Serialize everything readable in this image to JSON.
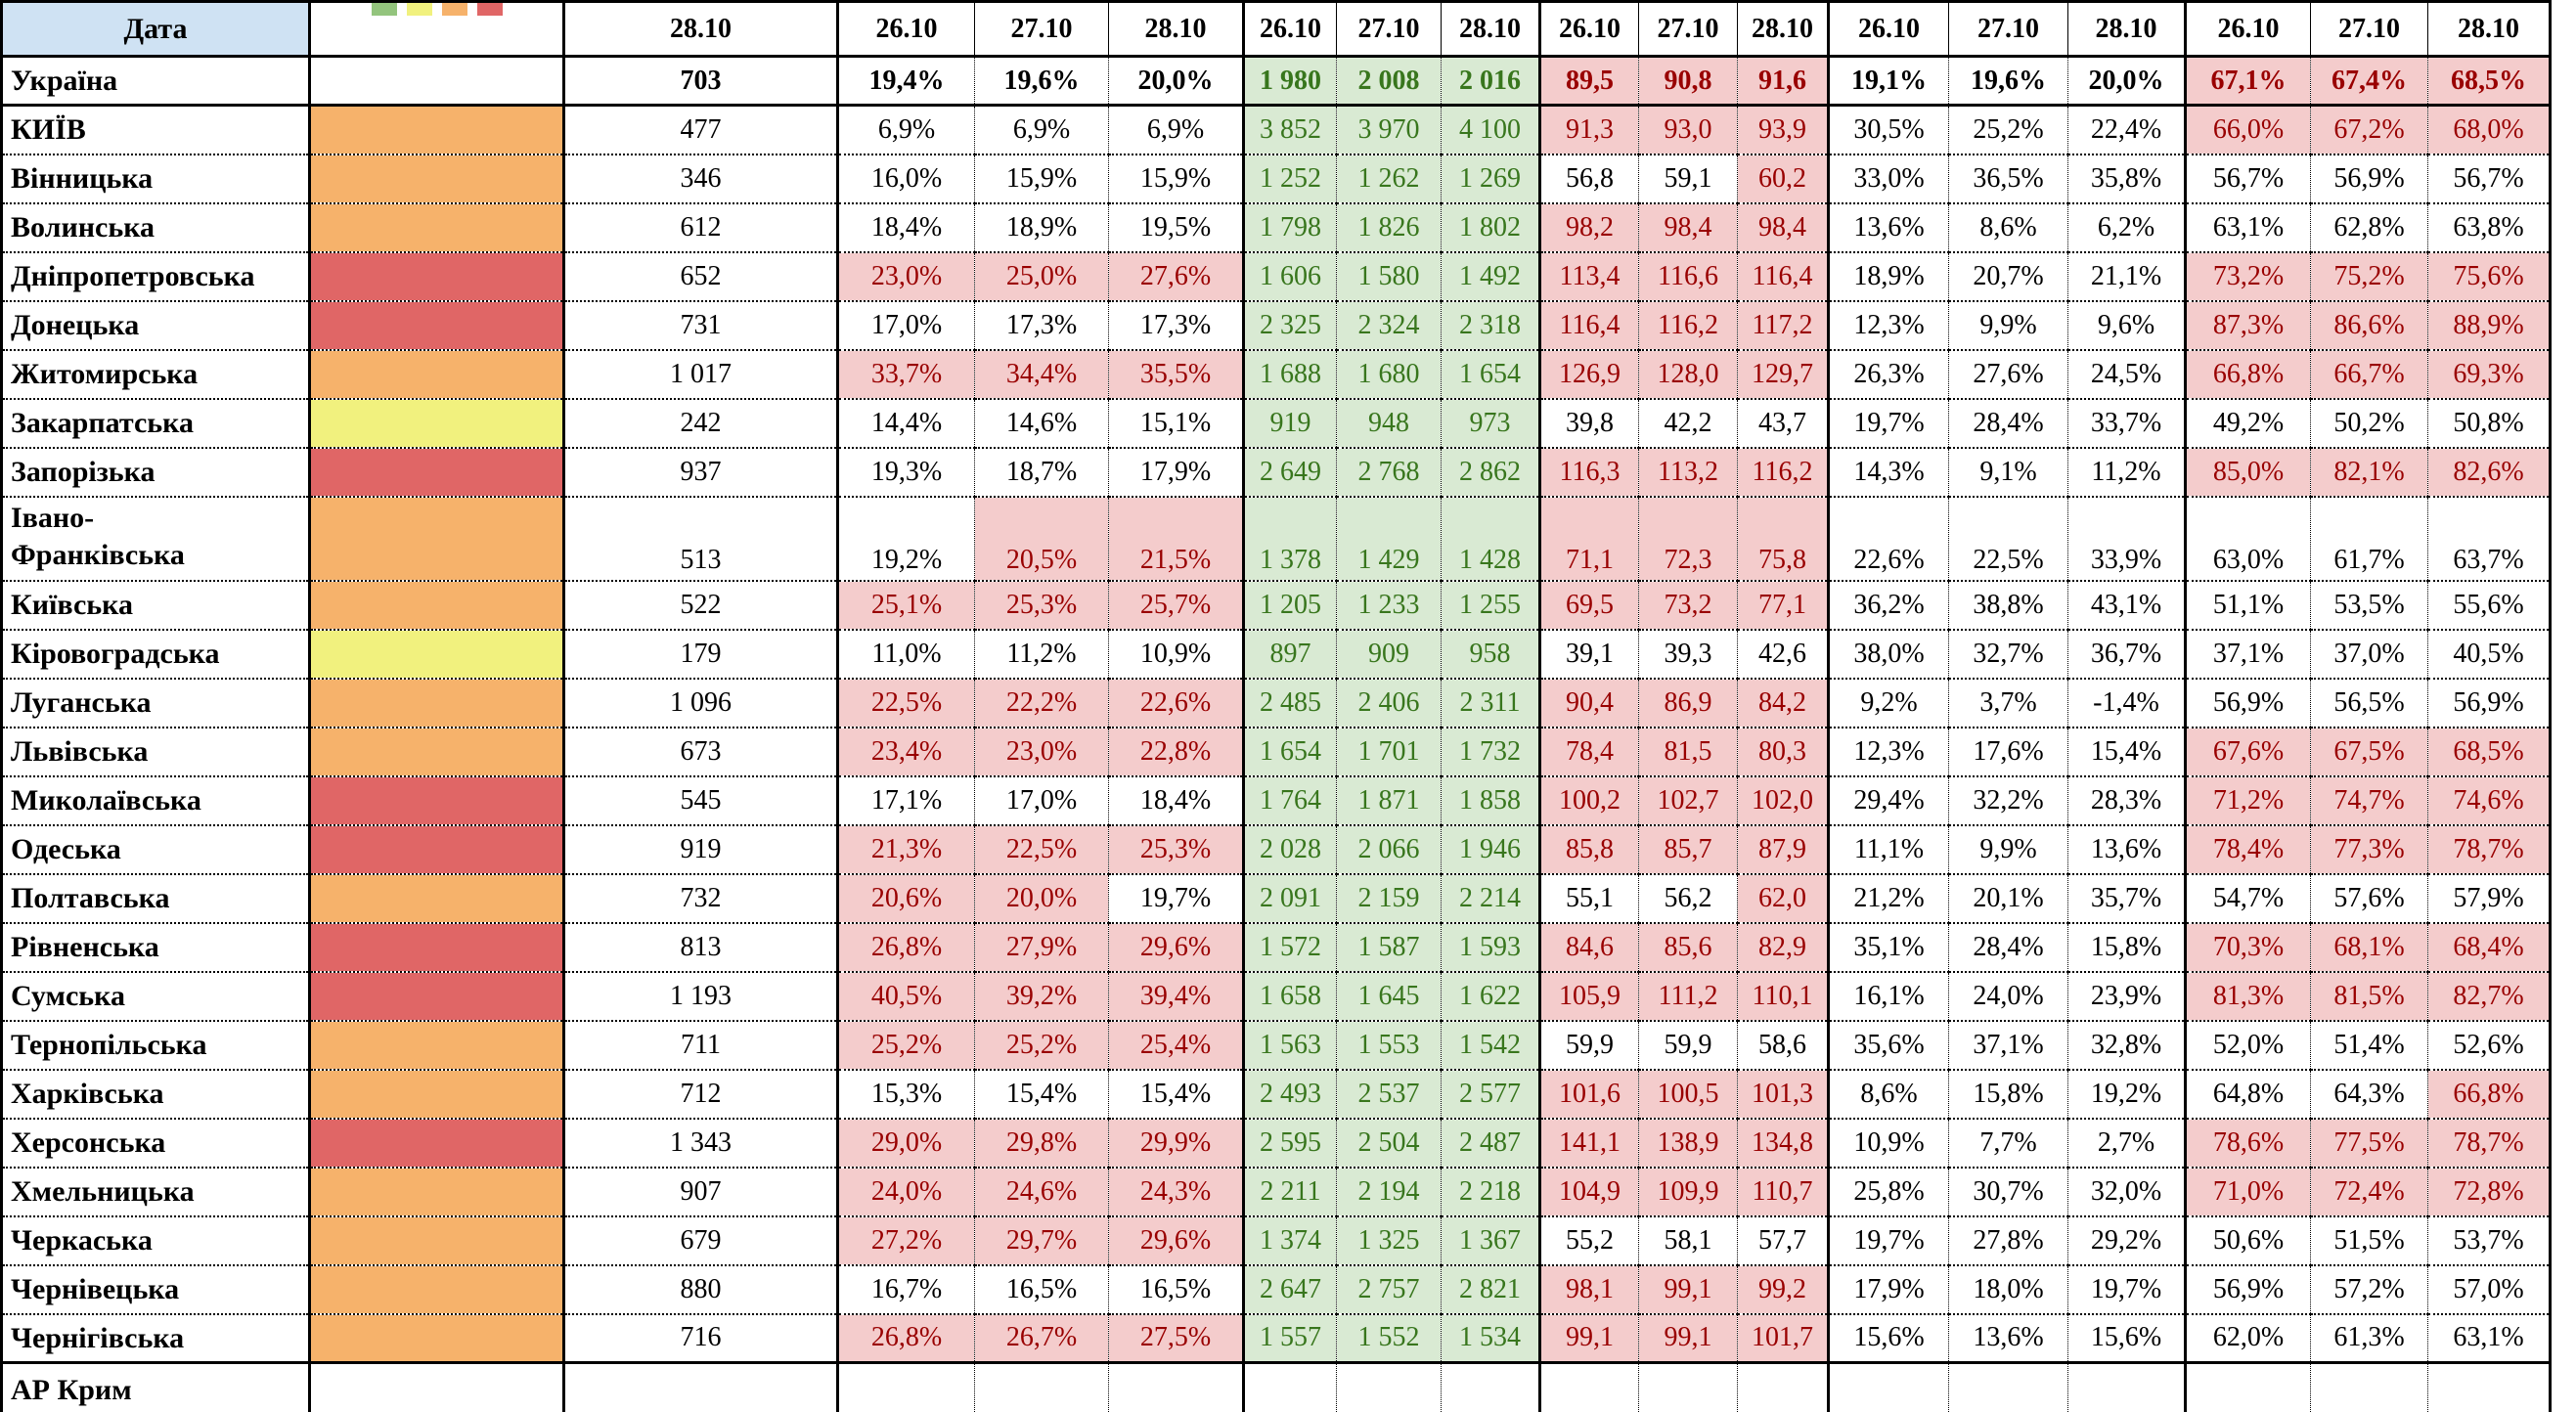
{
  "header": {
    "date_label": "Дата",
    "col1_date": "28.10",
    "group_dates": [
      "26.10",
      "27.10",
      "28.10"
    ],
    "num_groups": 5,
    "legend": [
      {
        "name": "green",
        "hex": "#93c47d"
      },
      {
        "name": "yellow",
        "hex": "#f1f17e"
      },
      {
        "name": "orange",
        "hex": "#f6b26b"
      },
      {
        "name": "red",
        "hex": "#e06666"
      }
    ]
  },
  "colors": {
    "header_blue": "#cfe2f3",
    "heat_orange": "#f6b26b",
    "heat_red": "#e06666",
    "heat_yellow": "#f1f17e",
    "green_bg": "#d9ead3",
    "green_text": "#38761d",
    "pink_bg": "#f4cccc",
    "red_text": "#990000"
  },
  "thresholds": {
    "g1_red_pct": 20,
    "g3_red_num": 60,
    "g5_red_pct": 65
  },
  "rows": [
    {
      "name": "Україна",
      "bold": true,
      "heat": null,
      "total": "703",
      "g1": [
        "19,4%",
        "19,6%",
        "20,0%"
      ],
      "g2": [
        "1 980",
        "2 008",
        "2 016"
      ],
      "g3": [
        "89,5",
        "90,8",
        "91,6"
      ],
      "g4": [
        "19,1%",
        "19,6%",
        "20,0%"
      ],
      "g5": [
        "67,1%",
        "67,4%",
        "68,5%"
      ]
    },
    {
      "name": "КИЇВ",
      "heat": "orange",
      "total": "477",
      "g1": [
        "6,9%",
        "6,9%",
        "6,9%"
      ],
      "g2": [
        "3 852",
        "3 970",
        "4 100"
      ],
      "g3": [
        "91,3",
        "93,0",
        "93,9"
      ],
      "g4": [
        "30,5%",
        "25,2%",
        "22,4%"
      ],
      "g5": [
        "66,0%",
        "67,2%",
        "68,0%"
      ]
    },
    {
      "name": "Вінницька",
      "heat": "orange",
      "total": "346",
      "g1": [
        "16,0%",
        "15,9%",
        "15,9%"
      ],
      "g2": [
        "1 252",
        "1 262",
        "1 269"
      ],
      "g3": [
        "56,8",
        "59,1",
        "60,2"
      ],
      "g4": [
        "33,0%",
        "36,5%",
        "35,8%"
      ],
      "g5": [
        "56,7%",
        "56,9%",
        "56,7%"
      ]
    },
    {
      "name": "Волинська",
      "heat": "orange",
      "total": "612",
      "g1": [
        "18,4%",
        "18,9%",
        "19,5%"
      ],
      "g2": [
        "1 798",
        "1 826",
        "1 802"
      ],
      "g3": [
        "98,2",
        "98,4",
        "98,4"
      ],
      "g4": [
        "13,6%",
        "8,6%",
        "6,2%"
      ],
      "g5": [
        "63,1%",
        "62,8%",
        "63,8%"
      ]
    },
    {
      "name": "Дніпропетровська",
      "heat": "red",
      "total": "652",
      "g1": [
        "23,0%",
        "25,0%",
        "27,6%"
      ],
      "g2": [
        "1 606",
        "1 580",
        "1 492"
      ],
      "g3": [
        "113,4",
        "116,6",
        "116,4"
      ],
      "g4": [
        "18,9%",
        "20,7%",
        "21,1%"
      ],
      "g5": [
        "73,2%",
        "75,2%",
        "75,6%"
      ]
    },
    {
      "name": "Донецька",
      "heat": "red",
      "total": "731",
      "g1": [
        "17,0%",
        "17,3%",
        "17,3%"
      ],
      "g2": [
        "2 325",
        "2 324",
        "2 318"
      ],
      "g3": [
        "116,4",
        "116,2",
        "117,2"
      ],
      "g4": [
        "12,3%",
        "9,9%",
        "9,6%"
      ],
      "g5": [
        "87,3%",
        "86,6%",
        "88,9%"
      ]
    },
    {
      "name": "Житомирська",
      "heat": "orange",
      "total": "1 017",
      "g1": [
        "33,7%",
        "34,4%",
        "35,5%"
      ],
      "g2": [
        "1 688",
        "1 680",
        "1 654"
      ],
      "g3": [
        "126,9",
        "128,0",
        "129,7"
      ],
      "g4": [
        "26,3%",
        "27,6%",
        "24,5%"
      ],
      "g5": [
        "66,8%",
        "66,7%",
        "69,3%"
      ]
    },
    {
      "name": "Закарпатська",
      "heat": "yellow",
      "total": "242",
      "g1": [
        "14,4%",
        "14,6%",
        "15,1%"
      ],
      "g2": [
        "919",
        "948",
        "973"
      ],
      "g3": [
        "39,8",
        "42,2",
        "43,7"
      ],
      "g4": [
        "19,7%",
        "28,4%",
        "33,7%"
      ],
      "g5": [
        "49,2%",
        "50,2%",
        "50,8%"
      ]
    },
    {
      "name": "Запорізька",
      "heat": "red",
      "total": "937",
      "g1": [
        "19,3%",
        "18,7%",
        "17,9%"
      ],
      "g2": [
        "2 649",
        "2 768",
        "2 862"
      ],
      "g3": [
        "116,3",
        "113,2",
        "116,2"
      ],
      "g4": [
        "14,3%",
        "9,1%",
        "11,2%"
      ],
      "g5": [
        "85,0%",
        "82,1%",
        "82,6%"
      ]
    },
    {
      "name": "Івано-\nФранківська",
      "heat": "orange",
      "total": "513",
      "tall": true,
      "g1": [
        "19,2%",
        "20,5%",
        "21,5%"
      ],
      "g2": [
        "1 378",
        "1 429",
        "1 428"
      ],
      "g3": [
        "71,1",
        "72,3",
        "75,8"
      ],
      "g4": [
        "22,6%",
        "22,5%",
        "33,9%"
      ],
      "g5": [
        "63,0%",
        "61,7%",
        "63,7%"
      ]
    },
    {
      "name": "Київська",
      "heat": "orange",
      "total": "522",
      "g1": [
        "25,1%",
        "25,3%",
        "25,7%"
      ],
      "g2": [
        "1 205",
        "1 233",
        "1 255"
      ],
      "g3": [
        "69,5",
        "73,2",
        "77,1"
      ],
      "g4": [
        "36,2%",
        "38,8%",
        "43,1%"
      ],
      "g5": [
        "51,1%",
        "53,5%",
        "55,6%"
      ]
    },
    {
      "name": "Кіровоградська",
      "heat": "yellow",
      "total": "179",
      "g1": [
        "11,0%",
        "11,2%",
        "10,9%"
      ],
      "g2": [
        "897",
        "909",
        "958"
      ],
      "g3": [
        "39,1",
        "39,3",
        "42,6"
      ],
      "g4": [
        "38,0%",
        "32,7%",
        "36,7%"
      ],
      "g5": [
        "37,1%",
        "37,0%",
        "40,5%"
      ]
    },
    {
      "name": "Луганська",
      "heat": "orange",
      "total": "1 096",
      "g1": [
        "22,5%",
        "22,2%",
        "22,6%"
      ],
      "g2": [
        "2 485",
        "2 406",
        "2 311"
      ],
      "g3": [
        "90,4",
        "86,9",
        "84,2"
      ],
      "g4": [
        "9,2%",
        "3,7%",
        "-1,4%"
      ],
      "g5": [
        "56,9%",
        "56,5%",
        "56,9%"
      ]
    },
    {
      "name": "Львівська",
      "heat": "orange",
      "total": "673",
      "g1": [
        "23,4%",
        "23,0%",
        "22,8%"
      ],
      "g2": [
        "1 654",
        "1 701",
        "1 732"
      ],
      "g3": [
        "78,4",
        "81,5",
        "80,3"
      ],
      "g4": [
        "12,3%",
        "17,6%",
        "15,4%"
      ],
      "g5": [
        "67,6%",
        "67,5%",
        "68,5%"
      ]
    },
    {
      "name": "Миколаївська",
      "heat": "red",
      "total": "545",
      "g1": [
        "17,1%",
        "17,0%",
        "18,4%"
      ],
      "g2": [
        "1 764",
        "1 871",
        "1 858"
      ],
      "g3": [
        "100,2",
        "102,7",
        "102,0"
      ],
      "g4": [
        "29,4%",
        "32,2%",
        "28,3%"
      ],
      "g5": [
        "71,2%",
        "74,7%",
        "74,6%"
      ]
    },
    {
      "name": "Одеська",
      "heat": "red",
      "total": "919",
      "g1": [
        "21,3%",
        "22,5%",
        "25,3%"
      ],
      "g2": [
        "2 028",
        "2 066",
        "1 946"
      ],
      "g3": [
        "85,8",
        "85,7",
        "87,9"
      ],
      "g4": [
        "11,1%",
        "9,9%",
        "13,6%"
      ],
      "g5": [
        "78,4%",
        "77,3%",
        "78,7%"
      ]
    },
    {
      "name": "Полтавська",
      "heat": "orange",
      "total": "732",
      "g1": [
        "20,6%",
        "20,0%",
        "19,7%"
      ],
      "g2": [
        "2 091",
        "2 159",
        "2 214"
      ],
      "g3": [
        "55,1",
        "56,2",
        "62,0"
      ],
      "g4": [
        "21,2%",
        "20,1%",
        "35,7%"
      ],
      "g5": [
        "54,7%",
        "57,6%",
        "57,9%"
      ]
    },
    {
      "name": "Рівненська",
      "heat": "red",
      "total": "813",
      "g1": [
        "26,8%",
        "27,9%",
        "29,6%"
      ],
      "g2": [
        "1 572",
        "1 587",
        "1 593"
      ],
      "g3": [
        "84,6",
        "85,6",
        "82,9"
      ],
      "g4": [
        "35,1%",
        "28,4%",
        "15,8%"
      ],
      "g5": [
        "70,3%",
        "68,1%",
        "68,4%"
      ]
    },
    {
      "name": "Сумська",
      "heat": "red",
      "total": "1 193",
      "g1": [
        "40,5%",
        "39,2%",
        "39,4%"
      ],
      "g2": [
        "1 658",
        "1 645",
        "1 622"
      ],
      "g3": [
        "105,9",
        "111,2",
        "110,1"
      ],
      "g4": [
        "16,1%",
        "24,0%",
        "23,9%"
      ],
      "g5": [
        "81,3%",
        "81,5%",
        "82,7%"
      ]
    },
    {
      "name": "Тернопільська",
      "heat": "orange",
      "total": "711",
      "g1": [
        "25,2%",
        "25,2%",
        "25,4%"
      ],
      "g2": [
        "1 563",
        "1 553",
        "1 542"
      ],
      "g3": [
        "59,9",
        "59,9",
        "58,6"
      ],
      "g4": [
        "35,6%",
        "37,1%",
        "32,8%"
      ],
      "g5": [
        "52,0%",
        "51,4%",
        "52,6%"
      ]
    },
    {
      "name": "Харківська",
      "heat": "orange",
      "total": "712",
      "g1": [
        "15,3%",
        "15,4%",
        "15,4%"
      ],
      "g2": [
        "2 493",
        "2 537",
        "2 577"
      ],
      "g3": [
        "101,6",
        "100,5",
        "101,3"
      ],
      "g4": [
        "8,6%",
        "15,8%",
        "19,2%"
      ],
      "g5": [
        "64,8%",
        "64,3%",
        "66,8%"
      ]
    },
    {
      "name": "Херсонська",
      "heat": "red",
      "total": "1 343",
      "g1": [
        "29,0%",
        "29,8%",
        "29,9%"
      ],
      "g2": [
        "2 595",
        "2 504",
        "2 487"
      ],
      "g3": [
        "141,1",
        "138,9",
        "134,8"
      ],
      "g4": [
        "10,9%",
        "7,7%",
        "2,7%"
      ],
      "g5": [
        "78,6%",
        "77,5%",
        "78,7%"
      ]
    },
    {
      "name": "Хмельницька",
      "heat": "orange",
      "total": "907",
      "g1": [
        "24,0%",
        "24,6%",
        "24,3%"
      ],
      "g2": [
        "2 211",
        "2 194",
        "2 218"
      ],
      "g3": [
        "104,9",
        "109,9",
        "110,7"
      ],
      "g4": [
        "25,8%",
        "30,7%",
        "32,0%"
      ],
      "g5": [
        "71,0%",
        "72,4%",
        "72,8%"
      ]
    },
    {
      "name": "Черкаська",
      "heat": "orange",
      "total": "679",
      "g1": [
        "27,2%",
        "29,7%",
        "29,6%"
      ],
      "g2": [
        "1 374",
        "1 325",
        "1 367"
      ],
      "g3": [
        "55,2",
        "58,1",
        "57,7"
      ],
      "g4": [
        "19,7%",
        "27,8%",
        "29,2%"
      ],
      "g5": [
        "50,6%",
        "51,5%",
        "53,7%"
      ]
    },
    {
      "name": "Чернівецька",
      "heat": "orange",
      "total": "880",
      "g1": [
        "16,7%",
        "16,5%",
        "16,5%"
      ],
      "g2": [
        "2 647",
        "2 757",
        "2 821"
      ],
      "g3": [
        "98,1",
        "99,1",
        "99,2"
      ],
      "g4": [
        "17,9%",
        "18,0%",
        "19,7%"
      ],
      "g5": [
        "56,9%",
        "57,2%",
        "57,0%"
      ]
    },
    {
      "name": "Чернігівська",
      "heat": "orange",
      "total": "716",
      "last": true,
      "g1": [
        "26,8%",
        "26,7%",
        "27,5%"
      ],
      "g2": [
        "1 557",
        "1 552",
        "1 534"
      ],
      "g3": [
        "99,1",
        "99,1",
        "101,7"
      ],
      "g4": [
        "15,6%",
        "13,6%",
        "15,6%"
      ],
      "g5": [
        "62,0%",
        "61,3%",
        "63,1%"
      ]
    }
  ],
  "partial_row": {
    "name": "АР Крим"
  }
}
